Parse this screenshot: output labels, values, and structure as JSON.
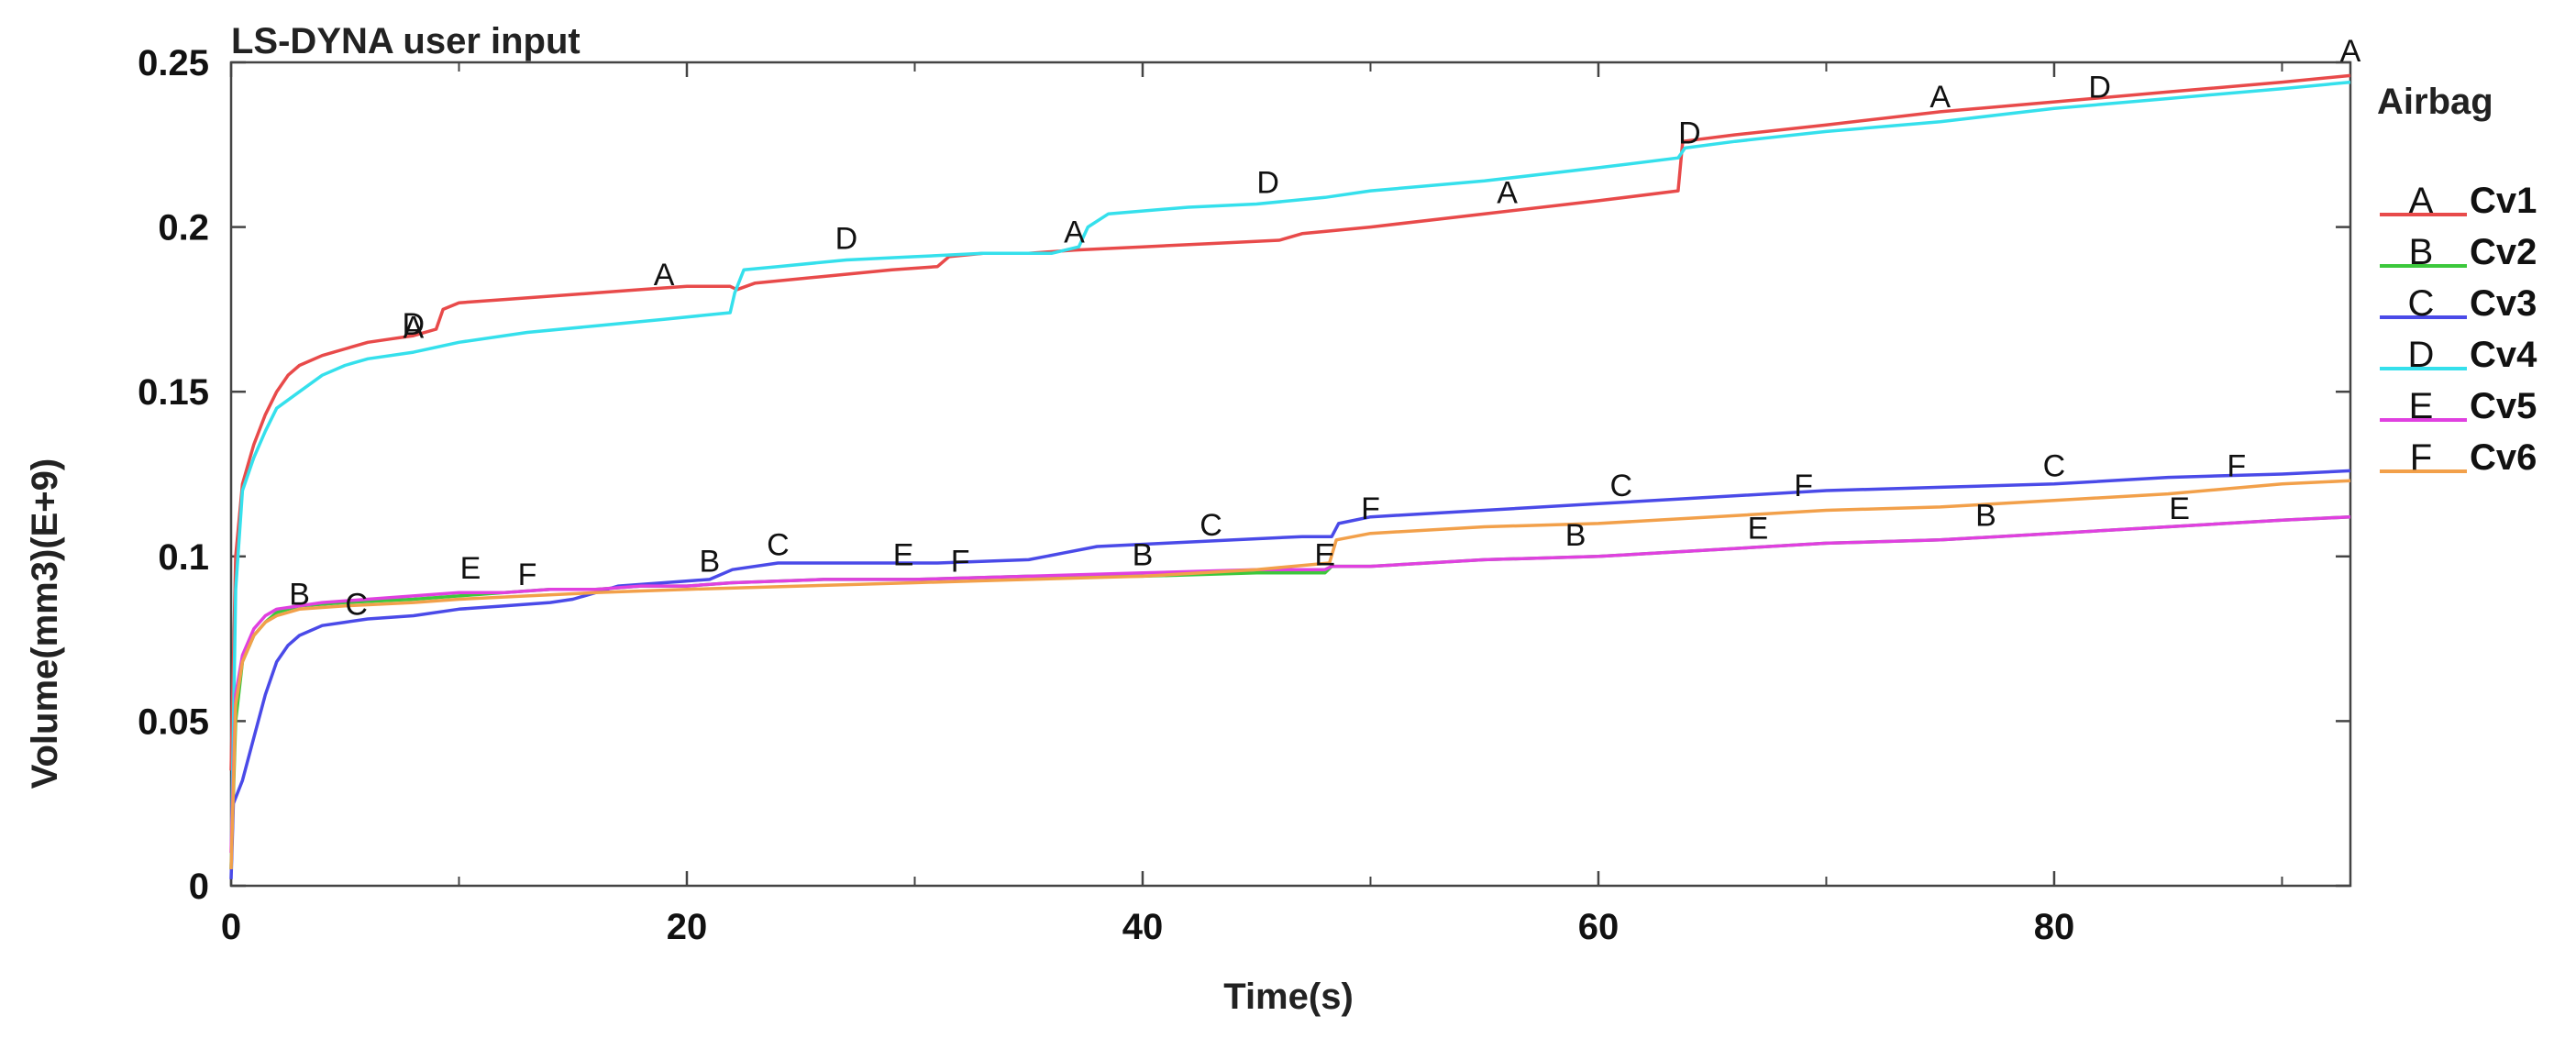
{
  "chart_data": {
    "type": "line",
    "title": "LS-DYNA user input",
    "xlabel": "Time(s)",
    "ylabel": "Volume(mm3)(E+9)",
    "xlim": [
      0,
      93
    ],
    "ylim": [
      0,
      0.25
    ],
    "x_ticks": [
      0,
      20,
      40,
      60,
      80
    ],
    "x_tick_labels": [
      "0",
      "20",
      "40",
      "60",
      "80"
    ],
    "y_ticks": [
      0,
      0.05,
      0.1,
      0.15,
      0.2,
      0.25
    ],
    "y_tick_labels": [
      "0",
      "0.05",
      "0.1",
      "0.15",
      "0.2",
      "0.25"
    ],
    "grid": false,
    "legend": {
      "title": "Airbag",
      "position": "right"
    },
    "series": [
      {
        "letter": "A",
        "name": "Cv1",
        "color": "#e84a4a",
        "points": [
          [
            0,
            0.035
          ],
          [
            0.2,
            0.1
          ],
          [
            0.5,
            0.122
          ],
          [
            1,
            0.134
          ],
          [
            1.5,
            0.143
          ],
          [
            2,
            0.15
          ],
          [
            2.5,
            0.155
          ],
          [
            3,
            0.158
          ],
          [
            4,
            0.161
          ],
          [
            5,
            0.163
          ],
          [
            6,
            0.165
          ],
          [
            7,
            0.166
          ],
          [
            8,
            0.167
          ],
          [
            9,
            0.169
          ],
          [
            9.3,
            0.175
          ],
          [
            10,
            0.177
          ],
          [
            12,
            0.178
          ],
          [
            14,
            0.179
          ],
          [
            16,
            0.18
          ],
          [
            18,
            0.181
          ],
          [
            20,
            0.182
          ],
          [
            21.9,
            0.182
          ],
          [
            22.2,
            0.181
          ],
          [
            23,
            0.183
          ],
          [
            26,
            0.185
          ],
          [
            29,
            0.187
          ],
          [
            31,
            0.188
          ],
          [
            31.5,
            0.191
          ],
          [
            33,
            0.192
          ],
          [
            35,
            0.192
          ],
          [
            37,
            0.193
          ],
          [
            40,
            0.194
          ],
          [
            43,
            0.195
          ],
          [
            46,
            0.196
          ],
          [
            47,
            0.198
          ],
          [
            50,
            0.2
          ],
          [
            55,
            0.204
          ],
          [
            60,
            0.208
          ],
          [
            63.5,
            0.211
          ],
          [
            63.7,
            0.226
          ],
          [
            66,
            0.228
          ],
          [
            70,
            0.231
          ],
          [
            75,
            0.235
          ],
          [
            80,
            0.238
          ],
          [
            85,
            0.241
          ],
          [
            90,
            0.244
          ],
          [
            93,
            0.246
          ]
        ],
        "markers": [
          [
            8,
            0.168
          ],
          [
            19,
            0.184
          ],
          [
            37,
            0.197
          ],
          [
            56,
            0.209
          ],
          [
            75,
            0.238
          ],
          [
            93,
            0.252
          ]
        ]
      },
      {
        "letter": "B",
        "name": "Cv2",
        "color": "#3cc83c",
        "points": [
          [
            0,
            0.005
          ],
          [
            0.2,
            0.05
          ],
          [
            0.5,
            0.068
          ],
          [
            1,
            0.076
          ],
          [
            1.5,
            0.08
          ],
          [
            2,
            0.083
          ],
          [
            3,
            0.085
          ],
          [
            5,
            0.086
          ],
          [
            8,
            0.087
          ],
          [
            10,
            0.088
          ],
          [
            12,
            0.089
          ],
          [
            14,
            0.09
          ],
          [
            16,
            0.09
          ],
          [
            18,
            0.091
          ],
          [
            20,
            0.091
          ],
          [
            22,
            0.092
          ],
          [
            26,
            0.093
          ],
          [
            30,
            0.093
          ],
          [
            35,
            0.094
          ],
          [
            40,
            0.094
          ],
          [
            45,
            0.095
          ],
          [
            48,
            0.095
          ],
          [
            48.3,
            0.097
          ],
          [
            50,
            0.097
          ],
          [
            55,
            0.099
          ],
          [
            60,
            0.1
          ],
          [
            65,
            0.102
          ],
          [
            70,
            0.104
          ],
          [
            75,
            0.105
          ],
          [
            80,
            0.107
          ],
          [
            85,
            0.109
          ],
          [
            90,
            0.111
          ],
          [
            93,
            0.112
          ]
        ],
        "markers": [
          [
            3,
            0.087
          ],
          [
            21,
            0.097
          ],
          [
            40,
            0.099
          ],
          [
            59,
            0.105
          ],
          [
            77,
            0.111
          ]
        ]
      },
      {
        "letter": "C",
        "name": "Cv3",
        "color": "#4a4ae8",
        "points": [
          [
            0,
            0.002
          ],
          [
            0.1,
            0.025
          ],
          [
            0.5,
            0.032
          ],
          [
            1,
            0.045
          ],
          [
            1.5,
            0.058
          ],
          [
            2,
            0.068
          ],
          [
            2.5,
            0.073
          ],
          [
            3,
            0.076
          ],
          [
            4,
            0.079
          ],
          [
            5,
            0.08
          ],
          [
            6,
            0.081
          ],
          [
            8,
            0.082
          ],
          [
            10,
            0.084
          ],
          [
            12,
            0.085
          ],
          [
            14,
            0.086
          ],
          [
            15,
            0.087
          ],
          [
            17,
            0.091
          ],
          [
            19,
            0.092
          ],
          [
            21,
            0.093
          ],
          [
            22,
            0.096
          ],
          [
            24,
            0.098
          ],
          [
            28,
            0.098
          ],
          [
            31,
            0.098
          ],
          [
            35,
            0.099
          ],
          [
            36.5,
            0.101
          ],
          [
            38,
            0.103
          ],
          [
            41,
            0.104
          ],
          [
            44,
            0.105
          ],
          [
            47,
            0.106
          ],
          [
            48.3,
            0.106
          ],
          [
            48.6,
            0.11
          ],
          [
            50,
            0.112
          ],
          [
            55,
            0.114
          ],
          [
            60,
            0.116
          ],
          [
            65,
            0.118
          ],
          [
            70,
            0.12
          ],
          [
            75,
            0.121
          ],
          [
            80,
            0.122
          ],
          [
            85,
            0.124
          ],
          [
            90,
            0.125
          ],
          [
            93,
            0.126
          ]
        ],
        "markers": [
          [
            5.5,
            0.084
          ],
          [
            24,
            0.102
          ],
          [
            43,
            0.108
          ],
          [
            61,
            0.12
          ],
          [
            80,
            0.126
          ]
        ]
      },
      {
        "letter": "D",
        "name": "Cv4",
        "color": "#35e0ec",
        "points": [
          [
            0,
            0.005
          ],
          [
            0.2,
            0.09
          ],
          [
            0.5,
            0.12
          ],
          [
            1,
            0.13
          ],
          [
            1.5,
            0.138
          ],
          [
            2,
            0.145
          ],
          [
            3,
            0.15
          ],
          [
            4,
            0.155
          ],
          [
            5,
            0.158
          ],
          [
            6,
            0.16
          ],
          [
            8,
            0.162
          ],
          [
            10,
            0.165
          ],
          [
            13,
            0.168
          ],
          [
            16,
            0.17
          ],
          [
            19,
            0.172
          ],
          [
            21.9,
            0.174
          ],
          [
            22.1,
            0.18
          ],
          [
            22.5,
            0.187
          ],
          [
            24,
            0.188
          ],
          [
            27,
            0.19
          ],
          [
            30,
            0.191
          ],
          [
            33,
            0.192
          ],
          [
            36,
            0.192
          ],
          [
            37.2,
            0.194
          ],
          [
            37.6,
            0.2
          ],
          [
            38.5,
            0.204
          ],
          [
            42,
            0.206
          ],
          [
            45,
            0.207
          ],
          [
            48,
            0.209
          ],
          [
            50,
            0.211
          ],
          [
            55,
            0.214
          ],
          [
            60,
            0.218
          ],
          [
            63.5,
            0.221
          ],
          [
            63.8,
            0.224
          ],
          [
            66,
            0.226
          ],
          [
            70,
            0.229
          ],
          [
            75,
            0.232
          ],
          [
            80,
            0.236
          ],
          [
            85,
            0.239
          ],
          [
            90,
            0.242
          ],
          [
            93,
            0.244
          ]
        ],
        "markers": [
          [
            8,
            0.169
          ],
          [
            27,
            0.195
          ],
          [
            45.5,
            0.212
          ],
          [
            64,
            0.227
          ],
          [
            82,
            0.241
          ]
        ]
      },
      {
        "letter": "E",
        "name": "Cv5",
        "color": "#e040e0",
        "points": [
          [
            0,
            0.01
          ],
          [
            0.2,
            0.058
          ],
          [
            0.5,
            0.07
          ],
          [
            1,
            0.078
          ],
          [
            1.5,
            0.082
          ],
          [
            2,
            0.084
          ],
          [
            4,
            0.086
          ],
          [
            6,
            0.087
          ],
          [
            8,
            0.088
          ],
          [
            10,
            0.089
          ],
          [
            12,
            0.089
          ],
          [
            14,
            0.09
          ],
          [
            16,
            0.09
          ],
          [
            18,
            0.091
          ],
          [
            20,
            0.091
          ],
          [
            22,
            0.092
          ],
          [
            26,
            0.093
          ],
          [
            30,
            0.093
          ],
          [
            35,
            0.094
          ],
          [
            40,
            0.095
          ],
          [
            45,
            0.096
          ],
          [
            48,
            0.096
          ],
          [
            48.3,
            0.097
          ],
          [
            50,
            0.097
          ],
          [
            55,
            0.099
          ],
          [
            60,
            0.1
          ],
          [
            65,
            0.102
          ],
          [
            70,
            0.104
          ],
          [
            75,
            0.105
          ],
          [
            80,
            0.107
          ],
          [
            85,
            0.109
          ],
          [
            90,
            0.111
          ],
          [
            93,
            0.112
          ]
        ],
        "markers": [
          [
            10.5,
            0.095
          ],
          [
            29.5,
            0.099
          ],
          [
            48,
            0.099
          ],
          [
            67,
            0.107
          ],
          [
            85.5,
            0.113
          ]
        ]
      },
      {
        "letter": "F",
        "name": "Cv6",
        "color": "#f2a04a",
        "points": [
          [
            0,
            0.005
          ],
          [
            0.2,
            0.055
          ],
          [
            0.5,
            0.068
          ],
          [
            1,
            0.076
          ],
          [
            1.5,
            0.08
          ],
          [
            2,
            0.082
          ],
          [
            3,
            0.084
          ],
          [
            5,
            0.085
          ],
          [
            8,
            0.086
          ],
          [
            10,
            0.087
          ],
          [
            13,
            0.088
          ],
          [
            16,
            0.089
          ],
          [
            20,
            0.09
          ],
          [
            25,
            0.091
          ],
          [
            30,
            0.092
          ],
          [
            35,
            0.093
          ],
          [
            40,
            0.094
          ],
          [
            45,
            0.096
          ],
          [
            48.2,
            0.098
          ],
          [
            48.5,
            0.105
          ],
          [
            50,
            0.107
          ],
          [
            55,
            0.109
          ],
          [
            60,
            0.11
          ],
          [
            65,
            0.112
          ],
          [
            70,
            0.114
          ],
          [
            75,
            0.115
          ],
          [
            80,
            0.117
          ],
          [
            85,
            0.119
          ],
          [
            90,
            0.122
          ],
          [
            93,
            0.123
          ]
        ],
        "markers": [
          [
            13,
            0.093
          ],
          [
            32,
            0.097
          ],
          [
            50,
            0.113
          ],
          [
            69,
            0.12
          ],
          [
            88,
            0.126
          ]
        ]
      }
    ]
  }
}
